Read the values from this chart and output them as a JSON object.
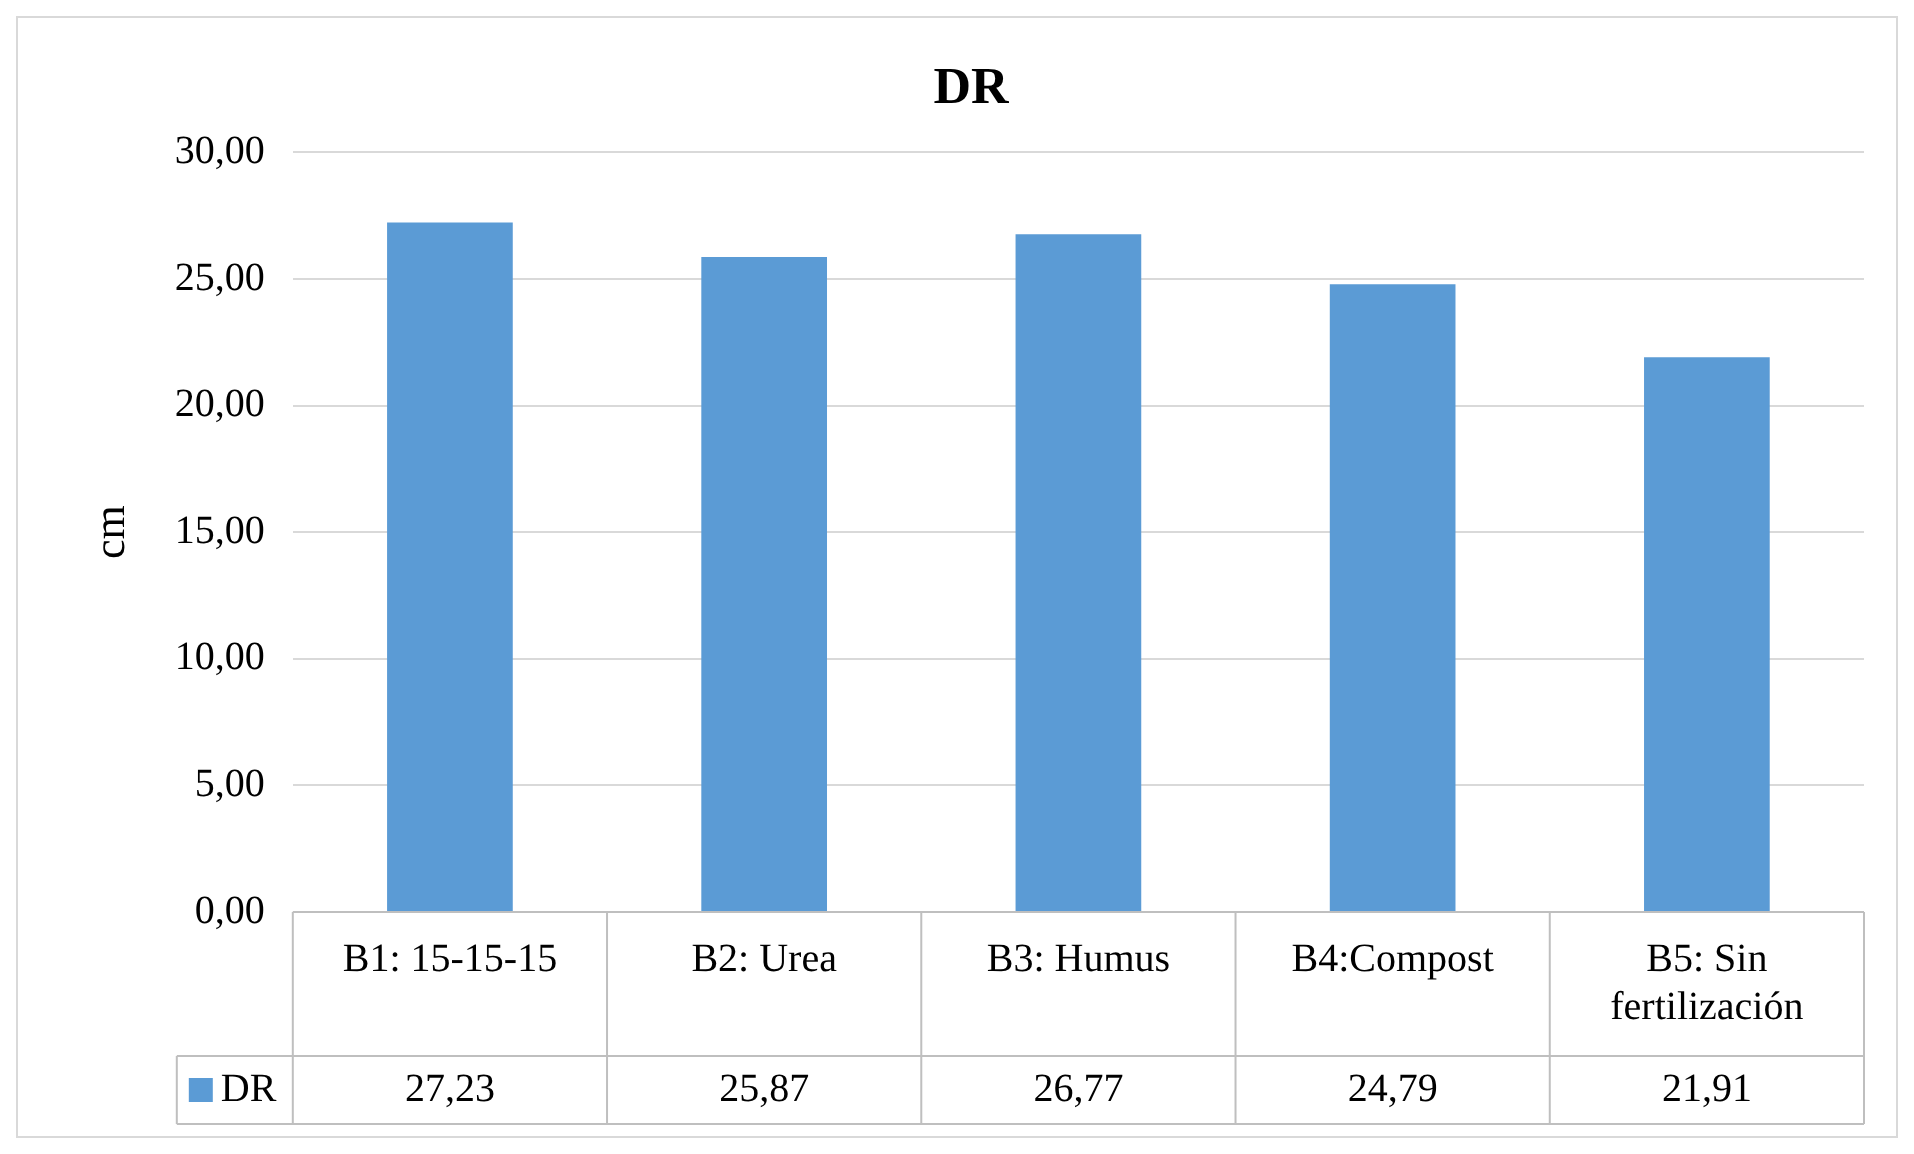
{
  "chart_data": {
    "type": "bar",
    "title": "DR",
    "ylabel": "cm",
    "categories": [
      "B1: 15-15-15",
      "B2: Urea",
      "B3: Humus",
      "B4:Compost",
      "B5: Sin fertilización"
    ],
    "series": [
      {
        "name": "DR",
        "color": "#5b9bd5",
        "values": [
          27.23,
          25.87,
          26.77,
          24.79,
          21.91
        ],
        "value_labels": [
          "27,23",
          "25,87",
          "26,77",
          "24,79",
          "21,91"
        ]
      }
    ],
    "ylim": [
      0,
      30
    ],
    "yticks": [
      {
        "value": 0,
        "label": "0,00"
      },
      {
        "value": 5,
        "label": "5,00"
      },
      {
        "value": 10,
        "label": "10,00"
      },
      {
        "value": 15,
        "label": "15,00"
      },
      {
        "value": 20,
        "label": "20,00"
      },
      {
        "value": 25,
        "label": "25,00"
      },
      {
        "value": 30,
        "label": "30,00"
      }
    ],
    "grid": "y",
    "legend": "bottom"
  }
}
